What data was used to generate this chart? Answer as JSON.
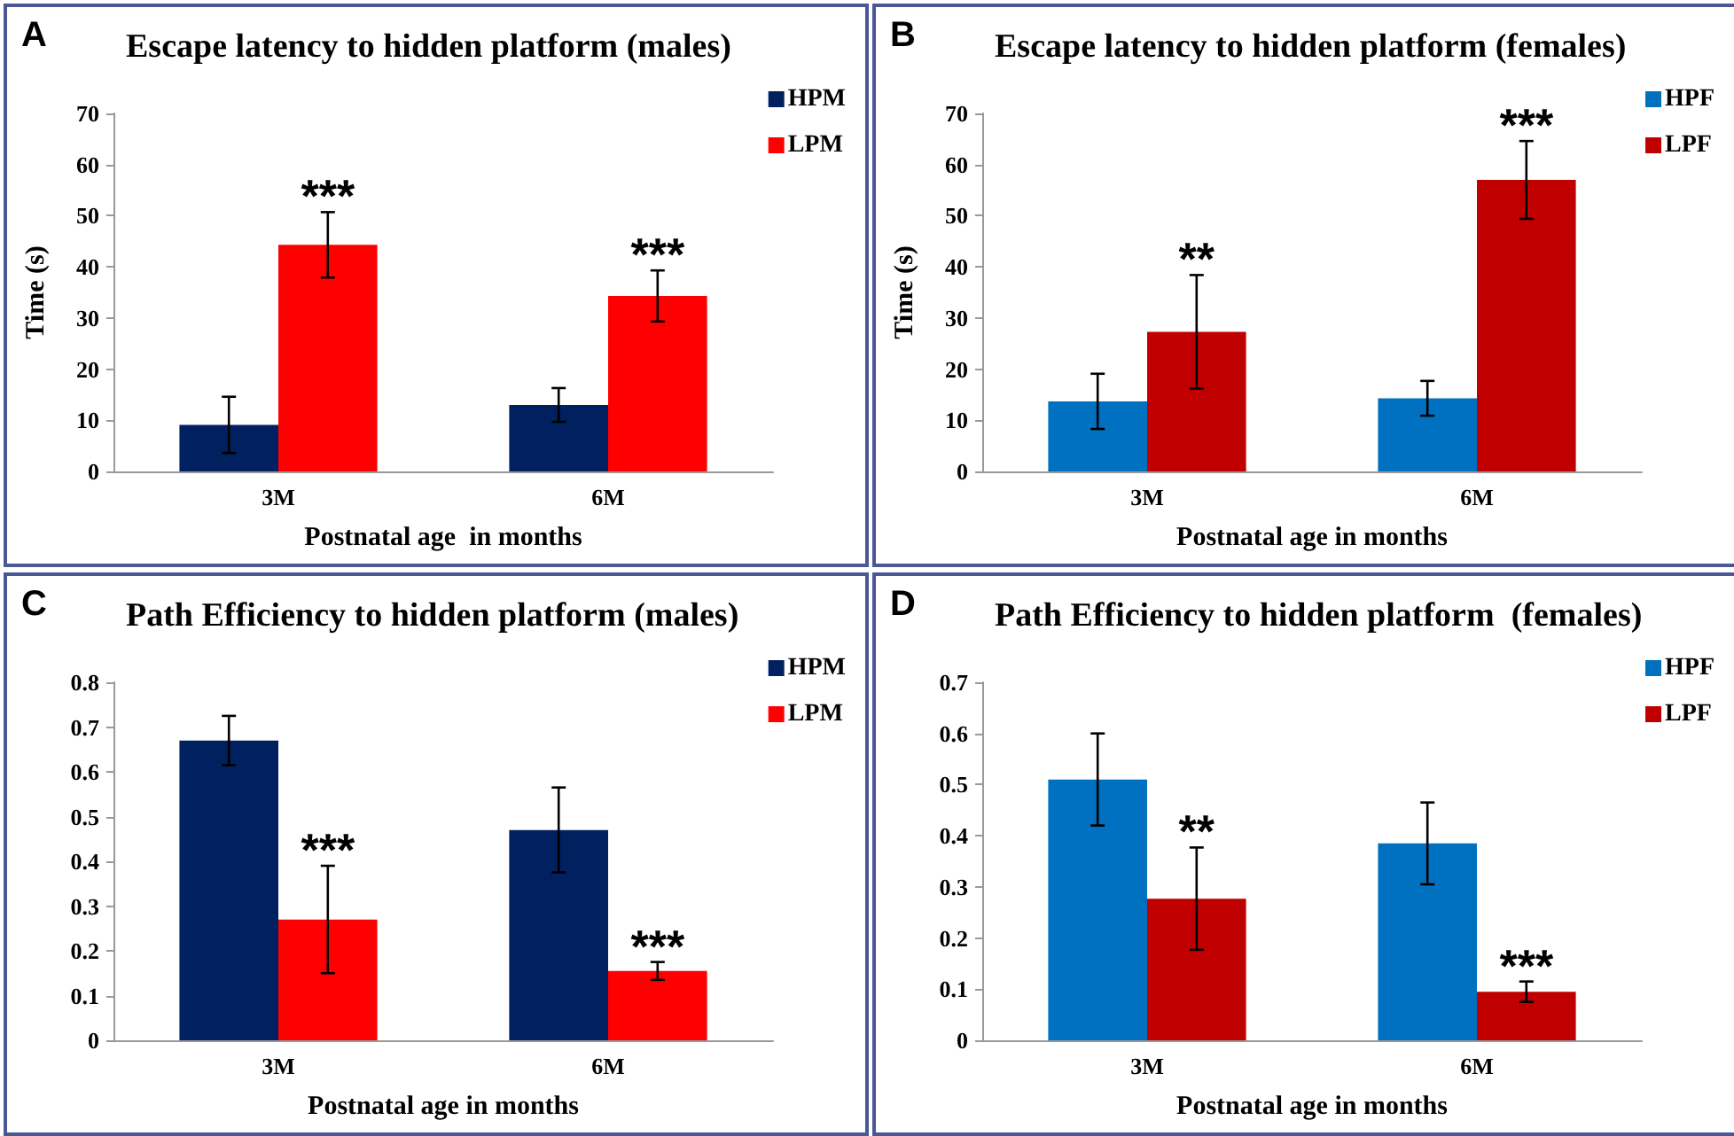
{
  "chart_data": [
    {
      "type": "bar",
      "title": "Escape latency to hidden platform (males)",
      "xlabel": "Postnatal age  in months",
      "ylabel": "Time (s)",
      "categories": [
        "3M",
        "6M"
      ],
      "series": [
        {
          "name": "HPM",
          "color": "#002060",
          "values": [
            9.1,
            13
          ],
          "errors": [
            5.5,
            3.3
          ]
        },
        {
          "name": "LPM",
          "color": "#ff0000",
          "values": [
            44.3,
            34.3
          ],
          "errors": [
            6.4,
            5
          ]
        }
      ],
      "ylim": [
        0,
        70
      ],
      "yticks": [
        0,
        10,
        20,
        30,
        40,
        50,
        60,
        70
      ],
      "legend": "top right",
      "annotations": [
        "A",
        {
          "text": "***",
          "x": "3M",
          "y": 44.3
        },
        {
          "text": "***",
          "x": "6M",
          "y": 34.3
        }
      ]
    },
    {
      "type": "bar",
      "title": "Escape latency to hidden platform (females)",
      "xlabel": "Postnatal age in months",
      "ylabel": "Time (s)",
      "categories": [
        "3M",
        "6M"
      ],
      "series": [
        {
          "name": "HPF",
          "color": "#0070c0",
          "values": [
            13.7,
            14.3
          ],
          "errors": [
            5.4,
            3.4
          ]
        },
        {
          "name": "LPF",
          "color": "#c00000",
          "values": [
            27.3,
            57
          ],
          "errors": [
            11.1,
            7.6
          ]
        }
      ],
      "ylim": [
        0,
        70
      ],
      "yticks": [
        0,
        10,
        20,
        30,
        40,
        50,
        60,
        70
      ],
      "legend": "top right",
      "annotations": [
        "B",
        {
          "text": "**",
          "x": "3M",
          "y": 27.3
        },
        {
          "text": "***",
          "x": "6M",
          "y": 57
        }
      ]
    },
    {
      "type": "bar",
      "title": "Path Efficiency to hidden platform (males)",
      "xlabel": "Postnatal age in months",
      "categories": [
        "3M",
        "6M"
      ],
      "series": [
        {
          "name": "HPM",
          "color": "#002060",
          "values": [
            0.67,
            0.47
          ],
          "errors": [
            0.055,
            0.095
          ]
        },
        {
          "name": "LPM",
          "color": "#ff0000",
          "values": [
            0.27,
            0.155
          ],
          "errors": [
            0.12,
            0.02
          ]
        }
      ],
      "ylim": [
        0,
        0.8
      ],
      "yticks": [
        0,
        0.1,
        0.2,
        0.3,
        0.4,
        0.5,
        0.6,
        0.7,
        0.8
      ],
      "legend": "top right",
      "annotations": [
        "C",
        {
          "text": "***",
          "x": "3M",
          "y": 0.27
        },
        {
          "text": "***",
          "x": "6M",
          "y": 0.155
        }
      ]
    },
    {
      "type": "bar",
      "title": "Path Efficiency to hidden platform  (females)",
      "xlabel": "Postnatal age in months",
      "categories": [
        "3M",
        "6M"
      ],
      "series": [
        {
          "name": "HPF",
          "color": "#0070c0",
          "values": [
            0.51,
            0.385
          ],
          "errors": [
            0.09,
            0.08
          ]
        },
        {
          "name": "LPF",
          "color": "#c00000",
          "values": [
            0.277,
            0.095
          ],
          "errors": [
            0.1,
            0.02
          ]
        }
      ],
      "ylim": [
        0,
        0.7
      ],
      "yticks": [
        0,
        0.1,
        0.2,
        0.3,
        0.4,
        0.5,
        0.6,
        0.7
      ],
      "legend": "top right",
      "annotations": [
        "D",
        {
          "text": "**",
          "x": "3M",
          "y": 0.277
        },
        {
          "text": "***",
          "x": "6M",
          "y": 0.095
        }
      ]
    }
  ]
}
